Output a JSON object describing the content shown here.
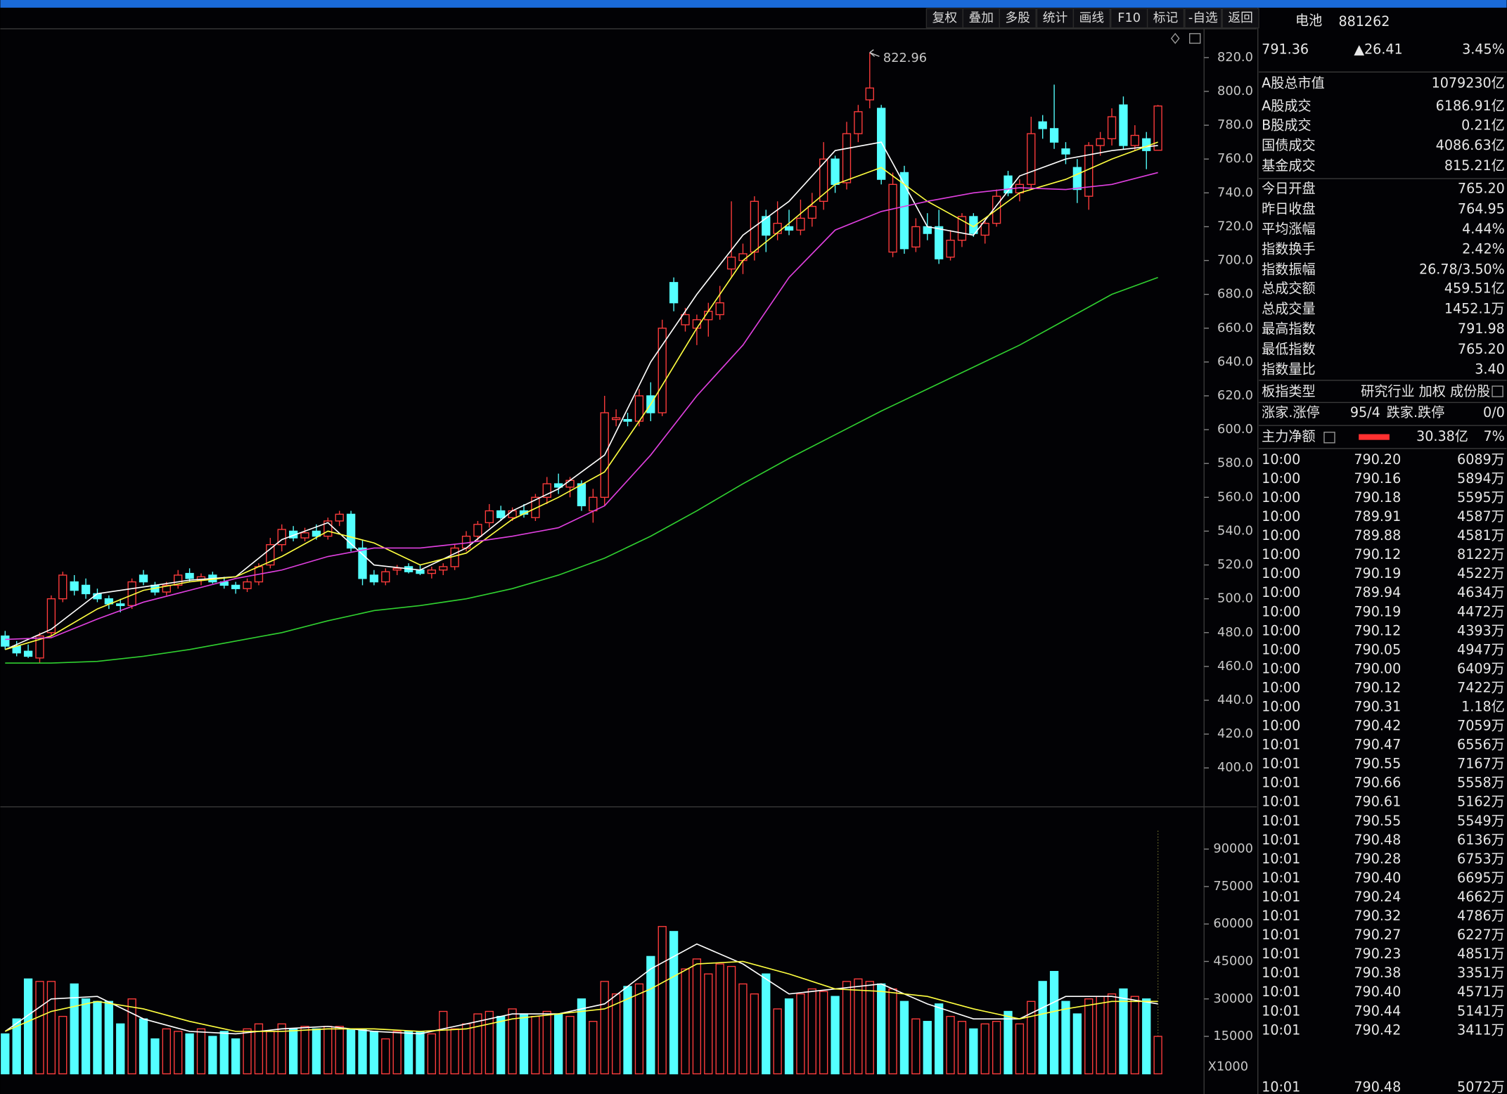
{
  "toolbar": [
    "复权",
    "叠加",
    "多股",
    "统计",
    "画线",
    "F10",
    "标记",
    "-自选",
    "返回"
  ],
  "chart_data": [
    {
      "type": "candlestick",
      "open": [
        478,
        472,
        469,
        465,
        480,
        500,
        510,
        508,
        503,
        500,
        497,
        496,
        514,
        508,
        504,
        508,
        515,
        511,
        514,
        510,
        508,
        506,
        510,
        520,
        532,
        540,
        536,
        540,
        537,
        546,
        550,
        530,
        514,
        510,
        517,
        519,
        517,
        515,
        517,
        519,
        530,
        537,
        545,
        552,
        548,
        552,
        548,
        560,
        568,
        566,
        568,
        552,
        560,
        606,
        606,
        605,
        620,
        610,
        687,
        662,
        660,
        665,
        668,
        695,
        700,
        705,
        726,
        716,
        720,
        718,
        725,
        735,
        760,
        746,
        775,
        795,
        790,
        705,
        752,
        708,
        720,
        720,
        702,
        712,
        726,
        715,
        722,
        750,
        740,
        745,
        782,
        778,
        766,
        755,
        738,
        768,
        772,
        792,
        768,
        772,
        765.2
      ],
      "high": [
        481,
        475,
        473,
        480,
        502,
        516,
        514,
        512,
        506,
        502,
        500,
        512,
        517,
        510,
        510,
        517,
        518,
        515,
        516,
        513,
        510,
        512,
        521,
        536,
        544,
        543,
        542,
        544,
        548,
        552,
        552,
        535,
        517,
        518,
        520,
        521,
        520,
        519,
        521,
        532,
        540,
        546,
        556,
        555,
        554,
        556,
        562,
        572,
        574,
        572,
        570,
        565,
        620,
        612,
        610,
        624,
        628,
        665,
        690,
        672,
        668,
        675,
        685,
        735,
        710,
        738,
        730,
        735,
        730,
        736,
        740,
        770,
        762,
        782,
        792,
        822.96,
        792,
        752,
        756,
        725,
        728,
        730,
        718,
        728,
        728,
        725,
        742,
        753,
        748,
        785,
        786,
        804,
        770,
        760,
        770,
        776,
        790,
        797,
        780,
        776,
        791.98
      ],
      "low": [
        470,
        466,
        465,
        462,
        478,
        498,
        502,
        500,
        498,
        494,
        492,
        494,
        508,
        502,
        502,
        506,
        510,
        508,
        509,
        506,
        503,
        504,
        508,
        518,
        528,
        534,
        534,
        535,
        535,
        543,
        528,
        508,
        508,
        508,
        514,
        515,
        514,
        512,
        514,
        517,
        528,
        534,
        542,
        546,
        546,
        548,
        546,
        556,
        562,
        560,
        552,
        545,
        555,
        602,
        602,
        602,
        605,
        608,
        670,
        658,
        650,
        655,
        665,
        690,
        692,
        700,
        705,
        712,
        715,
        715,
        720,
        730,
        740,
        742,
        770,
        790,
        745,
        702,
        704,
        705,
        712,
        698,
        700,
        708,
        714,
        710,
        720,
        738,
        735,
        742,
        772,
        766,
        757,
        734,
        730,
        762,
        768,
        766,
        765,
        754,
        765.2
      ],
      "close": [
        472,
        468,
        466,
        478,
        500,
        514,
        505,
        503,
        500,
        497,
        496,
        510,
        510,
        504,
        508,
        514,
        512,
        513,
        510,
        508,
        506,
        510,
        519,
        532,
        541,
        536,
        539,
        537,
        546,
        550,
        530,
        512,
        510,
        516,
        518,
        516,
        515,
        517,
        519,
        530,
        537,
        544,
        552,
        548,
        552,
        550,
        560,
        568,
        566,
        570,
        555,
        560,
        610,
        607,
        605,
        620,
        610,
        660,
        675,
        668,
        665,
        670,
        675,
        702,
        704,
        735,
        715,
        722,
        718,
        725,
        732,
        760,
        745,
        775,
        788,
        802,
        748,
        745,
        707,
        720,
        716,
        701,
        712,
        726,
        716,
        722,
        738,
        740,
        745,
        775,
        778,
        770,
        763,
        742,
        768,
        772,
        785,
        768,
        774,
        765,
        791.36
      ],
      "up_color": "#ff3c3c",
      "down_color": "#54ffff",
      "annotation": "822.96",
      "ylim": [
        377,
        837
      ],
      "yticks": [
        {
          "value": 820,
          "label": "820.0"
        },
        {
          "value": 800,
          "label": "800.0"
        },
        {
          "value": 780,
          "label": "780.0"
        },
        {
          "value": 760,
          "label": "760.0"
        },
        {
          "value": 740,
          "label": "740.0"
        },
        {
          "value": 720,
          "label": "720.0"
        },
        {
          "value": 700,
          "label": "700.0"
        },
        {
          "value": 680,
          "label": "680.0"
        },
        {
          "value": 660,
          "label": "660.0"
        },
        {
          "value": 640,
          "label": "640.0"
        },
        {
          "value": 620,
          "label": "620.0"
        },
        {
          "value": 600,
          "label": "600.0"
        },
        {
          "value": 580,
          "label": "580.0"
        },
        {
          "value": 560,
          "label": "560.0"
        },
        {
          "value": 540,
          "label": "540.0"
        },
        {
          "value": 520,
          "label": "520.0"
        },
        {
          "value": 500,
          "label": "500.0"
        },
        {
          "value": 480,
          "label": "480.0"
        },
        {
          "value": 460,
          "label": "460.0"
        },
        {
          "value": 440,
          "label": "440.0"
        },
        {
          "value": 420,
          "label": "420.0"
        },
        {
          "value": 400,
          "label": "400.0"
        }
      ],
      "series": [
        {
          "color": "#ffffff",
          "x": [
            0,
            4,
            8,
            12,
            16,
            20,
            24,
            28,
            32,
            36,
            40,
            44,
            48,
            52,
            56,
            60,
            64,
            68,
            72,
            76,
            80,
            84,
            88,
            92,
            96,
            100
          ],
          "values": [
            470,
            482,
            503,
            507,
            511,
            513,
            535,
            545,
            520,
            517,
            530,
            552,
            565,
            585,
            640,
            680,
            715,
            735,
            765,
            770,
            720,
            715,
            750,
            760,
            765,
            768
          ]
        },
        {
          "color": "#ffff40",
          "x": [
            0,
            4,
            8,
            12,
            16,
            20,
            24,
            28,
            32,
            36,
            40,
            44,
            48,
            52,
            56,
            60,
            64,
            68,
            72,
            76,
            80,
            84,
            88,
            92,
            96,
            100
          ],
          "values": [
            470,
            478,
            494,
            505,
            510,
            513,
            525,
            540,
            533,
            520,
            527,
            547,
            560,
            575,
            615,
            660,
            700,
            722,
            745,
            755,
            735,
            720,
            740,
            748,
            760,
            770
          ]
        },
        {
          "color": "#e040e0",
          "x": [
            0,
            4,
            8,
            12,
            16,
            20,
            24,
            28,
            32,
            36,
            40,
            44,
            48,
            52,
            56,
            60,
            64,
            68,
            72,
            76,
            80,
            84,
            88,
            92,
            96,
            100
          ],
          "values": [
            476,
            477,
            488,
            498,
            505,
            512,
            517,
            525,
            530,
            530,
            533,
            537,
            542,
            555,
            585,
            620,
            650,
            690,
            718,
            729,
            735,
            740,
            743,
            742,
            745,
            752
          ]
        },
        {
          "color": "#30d030",
          "x": [
            0,
            4,
            8,
            12,
            16,
            20,
            24,
            28,
            32,
            36,
            40,
            44,
            48,
            52,
            56,
            60,
            64,
            68,
            72,
            76,
            80,
            84,
            88,
            92,
            96,
            100
          ],
          "values": [
            462,
            462,
            463,
            466,
            470,
            475,
            480,
            487,
            493,
            496,
            500,
            506,
            514,
            524,
            537,
            552,
            568,
            583,
            597,
            611,
            624,
            637,
            650,
            665,
            680,
            690
          ]
        }
      ]
    },
    {
      "type": "volume",
      "values": [
        16000,
        22000,
        38000,
        37000,
        37000,
        23000,
        36000,
        30000,
        29000,
        29000,
        20000,
        30000,
        22000,
        14000,
        18000,
        17000,
        16000,
        18000,
        15000,
        17000,
        14000,
        18000,
        20000,
        17000,
        20000,
        18000,
        19000,
        18000,
        19000,
        19000,
        18000,
        18000,
        17000,
        14000,
        17000,
        17000,
        17000,
        16000,
        25000,
        18000,
        20000,
        24000,
        25000,
        23000,
        26000,
        24000,
        23000,
        25000,
        24000,
        23000,
        30000,
        21000,
        37000,
        32000,
        35000,
        36000,
        47000,
        59000,
        57000,
        42000,
        46000,
        40000,
        44000,
        43000,
        36000,
        32000,
        40000,
        26000,
        30000,
        32000,
        34000,
        33000,
        31000,
        37000,
        38000,
        37000,
        36000,
        34000,
        29000,
        22000,
        21000,
        28000,
        23000,
        21000,
        18000,
        20000,
        21000,
        25000,
        20000,
        29000,
        37000,
        41000,
        29000,
        24000,
        30000,
        31000,
        32000,
        34000,
        31000,
        30000,
        15000
      ],
      "ylim": [
        0,
        105000
      ],
      "yticks": [
        90000,
        75000,
        60000,
        45000,
        30000,
        15000
      ],
      "unit_label": "X1000",
      "series": [
        {
          "color": "#ffffff",
          "x": [
            0,
            4,
            8,
            12,
            16,
            20,
            24,
            28,
            32,
            36,
            40,
            44,
            48,
            52,
            56,
            60,
            64,
            68,
            72,
            76,
            80,
            84,
            88,
            92,
            96,
            100
          ],
          "values": [
            17000,
            30000,
            31000,
            22000,
            17000,
            16000,
            18000,
            19000,
            17000,
            16000,
            20000,
            24000,
            24000,
            28000,
            42000,
            52000,
            44000,
            32000,
            34000,
            36000,
            28000,
            22000,
            22000,
            31000,
            31000,
            28000
          ]
        },
        {
          "color": "#ffff40",
          "x": [
            0,
            4,
            8,
            12,
            16,
            20,
            24,
            28,
            32,
            36,
            40,
            44,
            48,
            52,
            56,
            60,
            64,
            68,
            72,
            76,
            80,
            84,
            88,
            92,
            96,
            100
          ],
          "values": [
            17000,
            25000,
            29000,
            26000,
            21000,
            17000,
            17000,
            18000,
            18000,
            17000,
            18000,
            22000,
            24000,
            26000,
            34000,
            44000,
            45000,
            40000,
            34000,
            33000,
            31000,
            26000,
            22000,
            26000,
            29000,
            29000
          ]
        }
      ]
    }
  ],
  "quote": {
    "name": "电池",
    "code": "881262",
    "price": "791.36",
    "change": "▲26.41",
    "pct": "3.45%"
  },
  "stats": [
    {
      "label": "A股总市值",
      "value": "1079230亿",
      "color": "#e8e8e8"
    },
    {
      "label": "A股成交",
      "value": "6186.91亿",
      "color": "#e8e040"
    },
    {
      "label": "B股成交",
      "value": "0.21亿",
      "color": "#e8e040"
    },
    {
      "label": "国债成交",
      "value": "4086.63亿",
      "color": "#e8e040"
    },
    {
      "label": "基金成交",
      "value": "815.21亿",
      "color": "#e8e040"
    },
    {
      "label": "今日开盘",
      "value": "765.20",
      "color": "#ff4040"
    },
    {
      "label": "昨日收盘",
      "value": "764.95",
      "color": "#e8e8e8"
    },
    {
      "label": "平均涨幅",
      "value": "4.44%",
      "color": "#ff4040"
    },
    {
      "label": "指数换手",
      "value": "2.42%",
      "color": "#e8e8e8"
    },
    {
      "label": "指数振幅",
      "value": "26.78/3.50%",
      "color": "#e8e8e8"
    },
    {
      "label": "总成交额",
      "value": "459.51亿",
      "color": "#e8e040"
    },
    {
      "label": "总成交量",
      "value": "1452.1万",
      "color": "#e8e040"
    },
    {
      "label": "最高指数",
      "value": "791.98",
      "color": "#ff4040"
    },
    {
      "label": "最低指数",
      "value": "765.20",
      "color": "#ff4040"
    },
    {
      "label": "指数量比",
      "value": "3.40",
      "color": "#e040e0"
    }
  ],
  "board": {
    "label": "板指类型",
    "value": "研究行业 加权 成份股"
  },
  "breadth": {
    "up_label": "涨家.涨停",
    "up": "95/4",
    "down_label": "跌家.跌停",
    "down": "0/0"
  },
  "main_flow": {
    "label": "主力净额",
    "amount": "30.38亿",
    "pct": "7%"
  },
  "ticks": [
    [
      "10:00",
      "790.20",
      "6089万"
    ],
    [
      "10:00",
      "790.16",
      "5894万"
    ],
    [
      "10:00",
      "790.18",
      "5595万"
    ],
    [
      "10:00",
      "789.91",
      "4587万"
    ],
    [
      "10:00",
      "789.88",
      "4581万"
    ],
    [
      "10:00",
      "790.12",
      "8122万"
    ],
    [
      "10:00",
      "790.19",
      "4522万"
    ],
    [
      "10:00",
      "789.94",
      "4634万"
    ],
    [
      "10:00",
      "790.19",
      "4472万"
    ],
    [
      "10:00",
      "790.12",
      "4393万"
    ],
    [
      "10:00",
      "790.05",
      "4947万"
    ],
    [
      "10:00",
      "790.00",
      "6409万"
    ],
    [
      "10:00",
      "790.12",
      "7422万"
    ],
    [
      "10:00",
      "790.31",
      "1.18亿"
    ],
    [
      "10:00",
      "790.42",
      "7059万"
    ],
    [
      "10:01",
      "790.47",
      "6556万"
    ],
    [
      "10:01",
      "790.55",
      "7167万"
    ],
    [
      "10:01",
      "790.66",
      "5558万"
    ],
    [
      "10:01",
      "790.61",
      "5162万"
    ],
    [
      "10:01",
      "790.55",
      "5549万"
    ],
    [
      "10:01",
      "790.48",
      "6136万"
    ],
    [
      "10:01",
      "790.28",
      "6753万"
    ],
    [
      "10:01",
      "790.40",
      "6695万"
    ],
    [
      "10:01",
      "790.24",
      "4662万"
    ],
    [
      "10:01",
      "790.32",
      "4786万"
    ],
    [
      "10:01",
      "790.27",
      "6227万"
    ],
    [
      "10:01",
      "790.23",
      "4851万"
    ],
    [
      "10:01",
      "790.38",
      "3351万"
    ],
    [
      "10:01",
      "790.40",
      "4571万"
    ],
    [
      "10:01",
      "790.44",
      "5141万"
    ],
    [
      "10:01",
      "790.42",
      "3411万"
    ],
    [
      "10:01",
      "790.48",
      "5072万"
    ]
  ]
}
